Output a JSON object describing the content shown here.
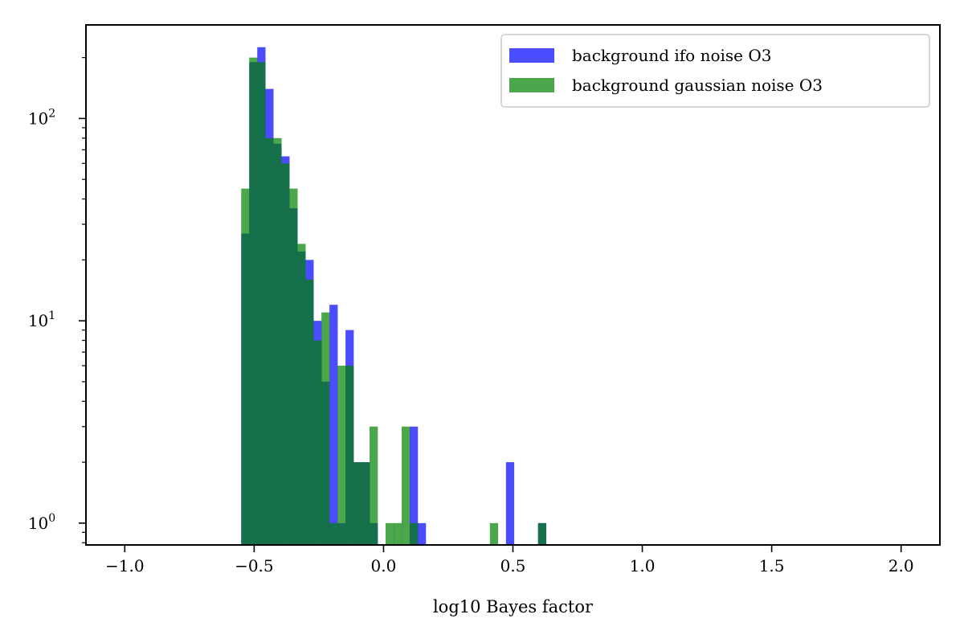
{
  "chart_data": {
    "type": "bar",
    "title": "",
    "xlabel": "log10 Bayes factor",
    "ylabel": "",
    "xlim": [
      -1.15,
      2.15
    ],
    "ylim": [
      0.78,
      290
    ],
    "yscale": "log",
    "xticks": [
      -1.0,
      -0.5,
      0.0,
      0.5,
      1.0,
      1.5,
      2.0
    ],
    "xtick_labels": [
      "−1.0",
      "−0.5",
      "0.0",
      "0.5",
      "1.0",
      "1.5",
      "2.0"
    ],
    "yticks": [
      {
        "base": "10",
        "exp": "0",
        "value": 1
      },
      {
        "base": "10",
        "exp": "1",
        "value": 10
      },
      {
        "base": "10",
        "exp": "2",
        "value": 100
      }
    ],
    "grid": false,
    "legend_position": "top-right",
    "bin_edges_start": -0.55,
    "bin_width": 0.031,
    "series": [
      {
        "name": "background ifo noise O3",
        "color": "#0000ff",
        "opacity": 0.7,
        "values": [
          27,
          190,
          225,
          140,
          75,
          65,
          36,
          22,
          20,
          10,
          5,
          12,
          1,
          9,
          2,
          2,
          1,
          0,
          0,
          0,
          0,
          3,
          1,
          0,
          0,
          0,
          0,
          0,
          0,
          0,
          0,
          0,
          0,
          2,
          0,
          0,
          0,
          1
        ]
      },
      {
        "name": "background gaussian noise O3",
        "color": "#008000",
        "opacity": 0.7,
        "values": [
          45,
          200,
          190,
          80,
          80,
          60,
          45,
          24,
          16,
          8,
          11,
          1,
          6,
          6,
          2,
          2,
          3,
          0,
          1,
          1,
          3,
          1,
          0,
          0,
          0,
          0,
          0,
          0,
          0,
          0,
          0,
          1,
          0,
          0,
          0,
          0,
          0,
          1
        ]
      }
    ]
  }
}
